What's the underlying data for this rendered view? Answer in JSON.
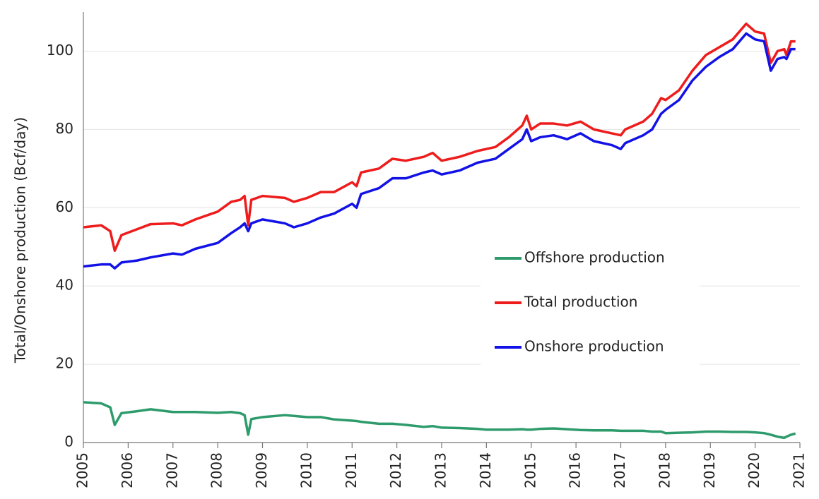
{
  "chart_data": {
    "type": "line",
    "y_label": "Total/Onshore production (Bcf/day)",
    "x": [
      2005.0,
      2005.4,
      2005.6,
      2005.7,
      2005.85,
      2006.2,
      2006.5,
      2007.0,
      2007.2,
      2007.5,
      2008.0,
      2008.3,
      2008.5,
      2008.6,
      2008.68,
      2008.75,
      2009.0,
      2009.5,
      2009.7,
      2010.0,
      2010.3,
      2010.6,
      2011.0,
      2011.1,
      2011.2,
      2011.6,
      2011.9,
      2012.2,
      2012.6,
      2012.8,
      2013.0,
      2013.4,
      2013.8,
      2014.0,
      2014.2,
      2014.5,
      2014.8,
      2014.9,
      2015.0,
      2015.2,
      2015.5,
      2015.8,
      2016.1,
      2016.4,
      2016.8,
      2017.0,
      2017.1,
      2017.5,
      2017.7,
      2017.9,
      2018.0,
      2018.3,
      2018.6,
      2018.9,
      2019.2,
      2019.5,
      2019.8,
      2020.0,
      2020.2,
      2020.35,
      2020.5,
      2020.65,
      2020.7,
      2020.8,
      2020.9
    ],
    "series": [
      {
        "name": "Offshore production",
        "color": "#2e9b6c",
        "values": [
          10.3,
          10,
          9,
          4.5,
          7.5,
          8,
          8.5,
          7.8,
          7.8,
          7.8,
          7.6,
          7.8,
          7.5,
          7,
          2,
          6,
          6.5,
          7,
          6.8,
          6.5,
          6.5,
          5.9,
          5.6,
          5.5,
          5.3,
          4.8,
          4.8,
          4.5,
          4,
          4.2,
          3.8,
          3.7,
          3.5,
          3.3,
          3.3,
          3.3,
          3.4,
          3.3,
          3.3,
          3.5,
          3.6,
          3.4,
          3.2,
          3.1,
          3.1,
          3,
          3,
          3,
          2.8,
          2.8,
          2.4,
          2.5,
          2.6,
          2.8,
          2.8,
          2.7,
          2.7,
          2.6,
          2.4,
          2,
          1.5,
          1.2,
          1.5,
          2,
          2.3
        ]
      },
      {
        "name": "Total production",
        "color": "#ee1c1c",
        "values": [
          55,
          55.5,
          54,
          49,
          53,
          54.5,
          55.8,
          56,
          55.5,
          57,
          59,
          61.5,
          62,
          63,
          55.5,
          62,
          63,
          62.5,
          61.5,
          62.5,
          64,
          64,
          66.5,
          65.5,
          69,
          70,
          72.5,
          72,
          73,
          74,
          72,
          73,
          74.5,
          75,
          75.5,
          78,
          81,
          83.5,
          80,
          81.5,
          81.5,
          81,
          82,
          80,
          79,
          78.5,
          80,
          82,
          84,
          88,
          87.5,
          90,
          95,
          99,
          101,
          103,
          107,
          105,
          104.5,
          97,
          100,
          100.5,
          99,
          102.5,
          102.5
        ]
      },
      {
        "name": "Onshore production",
        "color": "#1212e6",
        "values": [
          45,
          45.5,
          45.5,
          44.5,
          46,
          46.5,
          47.3,
          48.3,
          48,
          49.5,
          51,
          53.5,
          55,
          56,
          54,
          56,
          57,
          56,
          55,
          56,
          57.5,
          58.5,
          61,
          60,
          63.5,
          65,
          67.5,
          67.5,
          69,
          69.5,
          68.5,
          69.5,
          71.5,
          72,
          72.5,
          75,
          77.5,
          80,
          77,
          78,
          78.5,
          77.5,
          79,
          77,
          76,
          75,
          76.5,
          78.5,
          80,
          84,
          85,
          87.5,
          92.5,
          96,
          98.5,
          100.5,
          104.5,
          103,
          102.5,
          95,
          98,
          98.5,
          98,
          100.5,
          100.5
        ]
      }
    ],
    "xlim": [
      2005,
      2021
    ],
    "xticks": [
      2005,
      2006,
      2007,
      2008,
      2009,
      2010,
      2011,
      2012,
      2013,
      2014,
      2015,
      2016,
      2017,
      2018,
      2019,
      2020,
      2021
    ],
    "ylim": [
      0,
      110
    ],
    "yticks": [
      0,
      20,
      40,
      60,
      80,
      100
    ],
    "grid": true
  }
}
